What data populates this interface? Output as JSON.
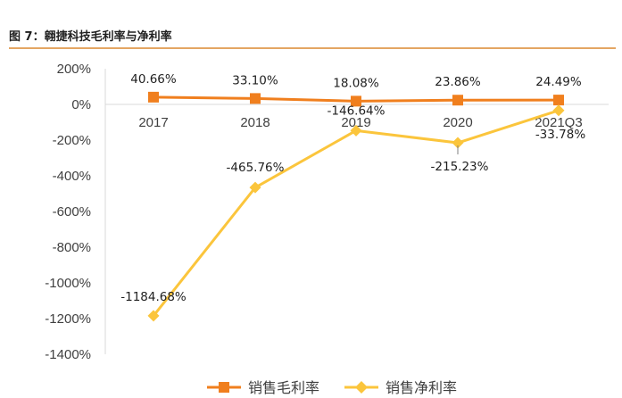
{
  "header": {
    "title": "图 7：翱捷科技毛利率与净利率"
  },
  "chart_data": {
    "type": "line",
    "categories": [
      "2017",
      "2018",
      "2019",
      "2020",
      "2021Q3"
    ],
    "ylim": [
      -1400,
      200
    ],
    "yticks": [
      200,
      0,
      -200,
      -400,
      -600,
      -800,
      -1000,
      -1200,
      -1400
    ],
    "ytick_labels": [
      "200%",
      "0%",
      "-200%",
      "-400%",
      "-600%",
      "-800%",
      "-1000%",
      "-1200%",
      "-1400%"
    ],
    "grid": false,
    "legend_position": "bottom",
    "series": [
      {
        "name": "销售毛利率",
        "color": "#f07f1e",
        "marker": "square",
        "values": [
          40.66,
          33.1,
          18.08,
          23.86,
          24.49
        ],
        "labels": [
          "40.66%",
          "33.10%",
          "18.08%",
          "23.86%",
          "24.49%"
        ]
      },
      {
        "name": "销售净利率",
        "color": "#fbc53c",
        "marker": "diamond",
        "values": [
          -1184.68,
          -465.76,
          -146.64,
          -215.23,
          -33.78
        ],
        "labels": [
          "-1184.68%",
          "-465.76%",
          "-146.64%",
          "-215.23%",
          "-33.78%"
        ]
      }
    ]
  }
}
